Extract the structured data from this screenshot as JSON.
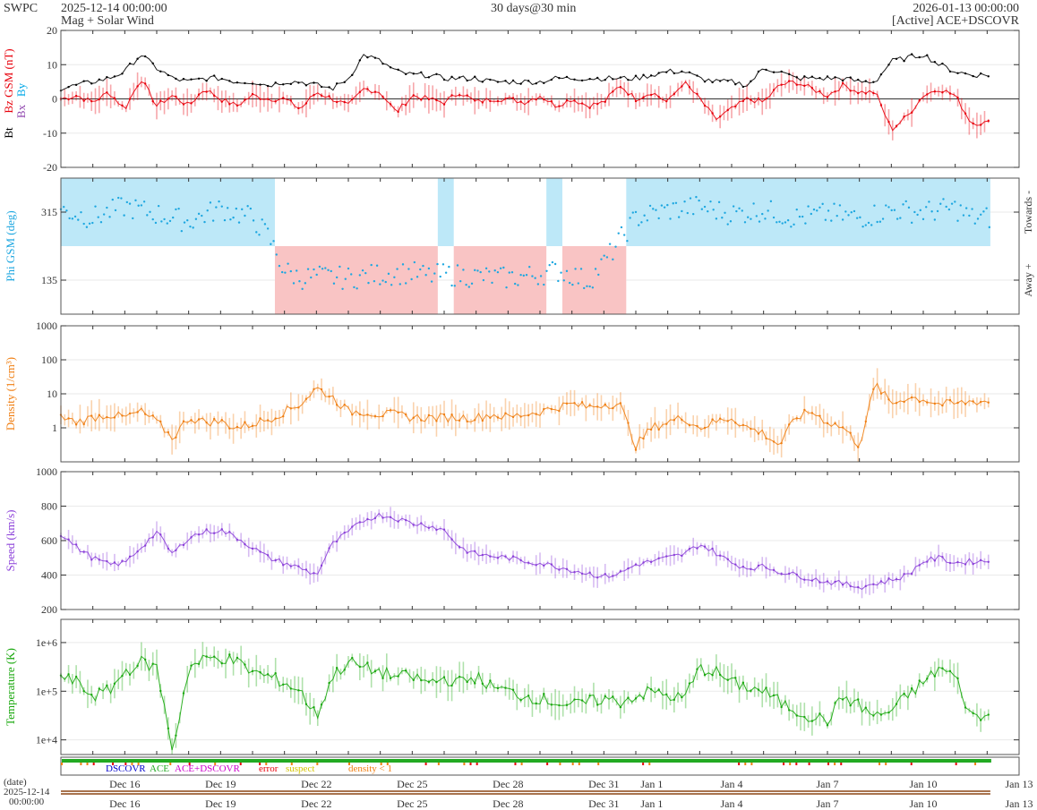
{
  "header": {
    "source": "SWPC",
    "start": "2025-12-14 00:00:00",
    "subtitle": "Mag + Solar Wind",
    "range": "30 days@30 min",
    "end": "2026-01-13 00:00:00",
    "spacecraft": "[Active] ACE+DSCOVR"
  },
  "colors": {
    "bt": "#000000",
    "bz": "#e8000b",
    "bx": "#8e44ad",
    "by": "#00a8e8",
    "phi": "#1ea7e0",
    "phi_towards_fill": "#bde8f8",
    "phi_away_fill": "#f9c4c4",
    "density": "#f07f13",
    "speed": "#8b3fd9",
    "temperature": "#1aa80e",
    "dscovr": "#0000cc",
    "ace": "#22aa22",
    "ace_dscovr": "#cc00cc",
    "error": "#e8000b",
    "suspect": "#d4c400",
    "density_lt_1": "#f07f13"
  },
  "chart_data": [
    {
      "type": "line",
      "panel": "mag",
      "ylabel_parts": [
        "Bt",
        "Bz GSM (nT)",
        "Bx",
        "By"
      ],
      "ylim": [
        -20,
        20
      ],
      "yticks": [
        "20",
        "10",
        "0",
        "-10",
        "-20"
      ],
      "ytick_values": [
        20,
        10,
        0,
        -10,
        -20
      ],
      "x_days": [
        0,
        0.5,
        1,
        1.5,
        2,
        2.5,
        3,
        3.5,
        4,
        4.5,
        5,
        5.5,
        6,
        6.5,
        7,
        7.5,
        8,
        8.5,
        9,
        9.5,
        10,
        10.5,
        11,
        11.5,
        12,
        12.5,
        13,
        13.5,
        14,
        14.5,
        15,
        15.5,
        16,
        16.5,
        17,
        17.5,
        18,
        18.5,
        19,
        19.5,
        20,
        20.5,
        21,
        21.5,
        22,
        22.5,
        23,
        23.5,
        24,
        24.5,
        25,
        25.5,
        26,
        26.5,
        27,
        27.5,
        28,
        28.5
      ],
      "series": [
        {
          "name": "Bt",
          "values": [
            3,
            4,
            5,
            6,
            8,
            13,
            9,
            6,
            5,
            6,
            6,
            5,
            5,
            4,
            5,
            5,
            4,
            3,
            6,
            13,
            11,
            8,
            7,
            7,
            6,
            6,
            6,
            5,
            5,
            5,
            5,
            6,
            6,
            6,
            6,
            6,
            6,
            7,
            8,
            8,
            6,
            5,
            5,
            4,
            9,
            8,
            6,
            6,
            6,
            6,
            5,
            5,
            11,
            12,
            13,
            10,
            8,
            7
          ]
        },
        {
          "name": "Bz",
          "values": [
            0,
            1,
            -1,
            2,
            -3,
            6,
            -2,
            1,
            -2,
            3,
            0,
            -2,
            1,
            0,
            0,
            -3,
            2,
            0,
            -2,
            3,
            2,
            -4,
            1,
            0,
            -1,
            2,
            -1,
            0,
            0,
            -1,
            1,
            -2,
            0,
            -2,
            -1,
            4,
            0,
            2,
            -1,
            5,
            0,
            -6,
            -3,
            0,
            -1,
            4,
            5,
            3,
            1,
            4,
            2,
            2,
            -9,
            -5,
            1,
            3,
            1,
            -7
          ]
        }
      ]
    },
    {
      "type": "scatter",
      "panel": "phi",
      "ylabel": "Phi GSM (deg)",
      "ylim": [
        45,
        405
      ],
      "yticks": [
        "315",
        "135"
      ],
      "ytick_values": [
        315,
        135
      ],
      "side_labels": [
        "Towards -",
        "Away +"
      ],
      "x_days": [
        0,
        1,
        2,
        3,
        4,
        5,
        6,
        6.5,
        7,
        7.5,
        8,
        9,
        10,
        11,
        11.5,
        12,
        13,
        14,
        15,
        15.5,
        16,
        16.5,
        17,
        18,
        19,
        20,
        21,
        22,
        23,
        24,
        25,
        26,
        27,
        28,
        28.5
      ],
      "values": [
        320,
        300,
        330,
        310,
        290,
        325,
        300,
        250,
        160,
        140,
        145,
        140,
        150,
        155,
        145,
        150,
        145,
        140,
        150,
        160,
        150,
        130,
        180,
        300,
        320,
        330,
        310,
        320,
        300,
        310,
        300,
        320,
        315,
        325,
        300
      ],
      "away_sector_days": [
        [
          6.7,
          11.8
        ],
        [
          12.3,
          15.2
        ],
        [
          15.7,
          17.7
        ]
      ]
    },
    {
      "type": "line",
      "panel": "density",
      "ylabel": "Density (1/cm³)",
      "scale": "log",
      "ylim": [
        0.1,
        1000
      ],
      "yticks": [
        "1000",
        "100",
        "10",
        "1"
      ],
      "ytick_values": [
        1000,
        100,
        10,
        1
      ],
      "x_days": [
        0,
        0.5,
        1,
        1.5,
        2,
        2.5,
        3,
        3.5,
        4,
        4.5,
        5,
        5.5,
        6,
        6.5,
        7,
        7.5,
        8,
        8.5,
        9,
        9.5,
        10,
        10.5,
        11,
        11.5,
        12,
        12.5,
        13,
        13.5,
        14,
        14.5,
        15,
        15.5,
        16,
        16.5,
        17,
        17.5,
        18,
        18.5,
        19,
        19.5,
        20,
        20.5,
        21,
        21.5,
        22,
        22.5,
        23,
        23.5,
        24,
        24.5,
        25,
        25.5,
        26,
        26.5,
        27,
        27.5,
        28,
        28.5
      ],
      "values": [
        2,
        1.5,
        2,
        2.5,
        2,
        3,
        1.5,
        0.5,
        2,
        1.5,
        1.5,
        1,
        1.3,
        1.8,
        3,
        5,
        15,
        8,
        3,
        3,
        2.5,
        2.5,
        2,
        2,
        2,
        2,
        2,
        2.5,
        2,
        2.5,
        3,
        4,
        5,
        4,
        5,
        5,
        0.3,
        1,
        1.5,
        2,
        1,
        1.5,
        2,
        1,
        0.7,
        0.3,
        2,
        3,
        1.5,
        1,
        0.3,
        20,
        5,
        8,
        7,
        5,
        5,
        6
      ]
    },
    {
      "type": "line",
      "panel": "speed",
      "ylabel": "Speed (km/s)",
      "ylim": [
        200,
        1000
      ],
      "yticks": [
        "1000",
        "800",
        "600",
        "400",
        "200"
      ],
      "ytick_values": [
        1000,
        800,
        600,
        400,
        200
      ],
      "x_days": [
        0,
        0.5,
        1,
        1.5,
        2,
        2.5,
        3,
        3.5,
        4,
        4.5,
        5,
        5.5,
        6,
        6.5,
        7,
        7.5,
        8,
        8.5,
        9,
        9.5,
        10,
        10.5,
        11,
        11.5,
        12,
        12.5,
        13,
        13.5,
        14,
        14.5,
        15,
        15.5,
        16,
        16.5,
        17,
        17.5,
        18,
        18.5,
        19,
        19.5,
        20,
        20.5,
        21,
        21.5,
        22,
        22.5,
        23,
        23.5,
        24,
        24.5,
        25,
        25.5,
        26,
        26.5,
        27,
        27.5,
        28,
        28.5
      ],
      "values": [
        640,
        560,
        500,
        460,
        470,
        560,
        650,
        520,
        620,
        650,
        660,
        620,
        560,
        500,
        470,
        440,
        400,
        580,
        650,
        720,
        750,
        730,
        700,
        690,
        660,
        560,
        520,
        510,
        500,
        480,
        470,
        450,
        430,
        410,
        390,
        410,
        460,
        480,
        500,
        520,
        580,
        530,
        470,
        440,
        450,
        420,
        400,
        380,
        360,
        350,
        330,
        350,
        370,
        400,
        480,
        500,
        470,
        480
      ]
    },
    {
      "type": "line",
      "panel": "temperature",
      "ylabel": "Temperature (K)",
      "scale": "log",
      "ylim": [
        5000,
        3000000
      ],
      "yticks": [
        "1e+6",
        "1e+5",
        "1e+4"
      ],
      "ytick_values": [
        1000000,
        100000,
        10000
      ],
      "x_days": [
        0,
        0.5,
        1,
        1.5,
        2,
        2.5,
        3,
        3.5,
        4,
        4.5,
        5,
        5.5,
        6,
        6.5,
        7,
        7.5,
        8,
        8.5,
        9,
        9.5,
        10,
        10.5,
        11,
        11.5,
        12,
        12.5,
        13,
        13.5,
        14,
        14.5,
        15,
        15.5,
        16,
        16.5,
        17,
        17.5,
        18,
        18.5,
        19,
        19.5,
        20,
        20.5,
        21,
        21.5,
        22,
        22.5,
        23,
        23.5,
        24,
        24.5,
        25,
        25.5,
        26,
        26.5,
        27,
        27.5,
        28,
        28.5
      ],
      "values": [
        200000,
        150000,
        80000,
        100000,
        250000,
        400000,
        300000,
        6000,
        300000,
        450000,
        500000,
        400000,
        250000,
        200000,
        150000,
        100000,
        30000,
        200000,
        400000,
        300000,
        250000,
        200000,
        200000,
        150000,
        180000,
        150000,
        200000,
        120000,
        100000,
        80000,
        70000,
        60000,
        50000,
        60000,
        70000,
        60000,
        80000,
        100000,
        80000,
        70000,
        300000,
        250000,
        150000,
        120000,
        100000,
        60000,
        40000,
        30000,
        25000,
        80000,
        50000,
        30000,
        40000,
        80000,
        150000,
        300000,
        200000,
        30000
      ]
    }
  ],
  "quality_legend": [
    "DSCOVR",
    "ACE",
    "ACE+DSCOVR",
    "error",
    "suspect",
    "density < 1"
  ],
  "x_axis": {
    "label": "(date)",
    "start_label_date": "2025-12-14",
    "start_label_time": "00:00:00",
    "tick_days": [
      2,
      5,
      8,
      11,
      14,
      17,
      18.5,
      21,
      24,
      27,
      30
    ],
    "tick_labels": [
      "Dec 16",
      "Dec 19",
      "Dec 22",
      "Dec 25",
      "Dec 28",
      "Dec 31",
      "Jan 1",
      "Jan 4",
      "Jan 7",
      "Jan 10",
      "Jan 13"
    ]
  }
}
